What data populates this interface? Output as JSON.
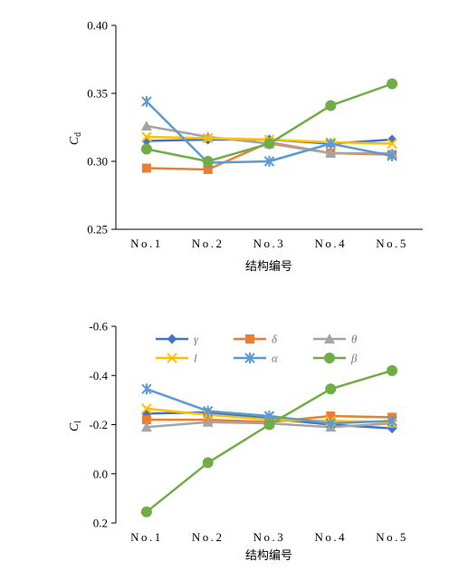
{
  "chart_data": [
    {
      "type": "line",
      "categories": [
        "No.1",
        "No.2",
        "No.3",
        "No.4",
        "No.5"
      ],
      "ylabel": "C",
      "ylabel_sub": "d",
      "xlabel": "结构编号",
      "ylim": [
        0.25,
        0.4
      ],
      "yticks": [
        "0.25",
        "0.30",
        "0.35",
        "0.40"
      ],
      "series": [
        {
          "name": "γ",
          "color": "#4472C4",
          "marker": "diamond",
          "values": [
            0.315,
            0.316,
            0.316,
            0.313,
            0.316
          ]
        },
        {
          "name": "δ",
          "color": "#ED7D31",
          "marker": "square",
          "values": [
            0.295,
            0.294,
            0.314,
            0.306,
            0.305
          ]
        },
        {
          "name": "θ",
          "color": "#A5A5A5",
          "marker": "triangle",
          "values": [
            0.326,
            0.318,
            0.313,
            0.306,
            0.306
          ]
        },
        {
          "name": "l",
          "color": "#FFC000",
          "marker": "x",
          "values": [
            0.318,
            0.317,
            0.316,
            0.314,
            0.313
          ]
        },
        {
          "name": "α",
          "color": "#5B9BD5",
          "marker": "star",
          "values": [
            0.344,
            0.299,
            0.3,
            0.313,
            0.304
          ]
        },
        {
          "name": "β",
          "color": "#70AD47",
          "marker": "circle",
          "values": [
            0.309,
            0.3,
            0.313,
            0.341,
            0.357
          ]
        }
      ]
    },
    {
      "type": "line",
      "categories": [
        "No.1",
        "No.2",
        "No.3",
        "No.4",
        "No.5"
      ],
      "ylabel": "C",
      "ylabel_sub": "l",
      "xlabel": "结构编号",
      "ylim": [
        -0.6,
        0.2
      ],
      "y_inverted": true,
      "yticks": [
        "-0.6",
        "-0.4",
        "-0.2",
        "0.0",
        "0.2"
      ],
      "legend": "top",
      "series": [
        {
          "name": "γ",
          "color": "#4472C4",
          "marker": "diamond",
          "values": [
            -0.245,
            -0.25,
            -0.225,
            -0.2,
            -0.185
          ]
        },
        {
          "name": "δ",
          "color": "#ED7D31",
          "marker": "square",
          "values": [
            -0.22,
            -0.22,
            -0.21,
            -0.235,
            -0.23
          ]
        },
        {
          "name": "θ",
          "color": "#A5A5A5",
          "marker": "triangle",
          "values": [
            -0.19,
            -0.21,
            -0.205,
            -0.19,
            -0.205
          ]
        },
        {
          "name": "l",
          "color": "#FFC000",
          "marker": "x",
          "values": [
            -0.265,
            -0.24,
            -0.22,
            -0.215,
            -0.21
          ]
        },
        {
          "name": "α",
          "color": "#5B9BD5",
          "marker": "star",
          "values": [
            -0.345,
            -0.255,
            -0.235,
            -0.205,
            -0.215
          ]
        },
        {
          "name": "β",
          "color": "#70AD47",
          "marker": "circle",
          "values": [
            0.155,
            -0.045,
            -0.2,
            -0.345,
            -0.42
          ]
        }
      ]
    }
  ]
}
